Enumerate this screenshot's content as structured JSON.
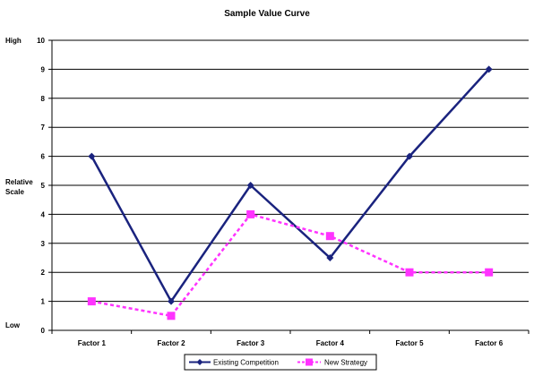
{
  "chart_data": {
    "type": "line",
    "title": "Sample Value Curve",
    "categories": [
      "Factor 1",
      "Factor 2",
      "Factor 3",
      "Factor 4",
      "Factor 5",
      "Factor 6"
    ],
    "ylim": [
      0,
      10
    ],
    "yticks": [
      0,
      1,
      2,
      3,
      4,
      5,
      6,
      7,
      8,
      9,
      10
    ],
    "grid": true,
    "side_labels": {
      "high": "High",
      "middle_line1": "Relative",
      "middle_line2": "Scale",
      "low": "Low"
    },
    "legend_position": "bottom",
    "series": [
      {
        "name": "Existing Competition",
        "values": [
          6,
          1,
          5,
          2.5,
          6,
          9
        ],
        "color": "#1a237e",
        "marker": "diamond",
        "line_style": "solid"
      },
      {
        "name": "New Strategy",
        "values": [
          1,
          0.5,
          4,
          3.25,
          2,
          2
        ],
        "color": "#ff33ff",
        "marker": "square",
        "line_style": "dashed"
      }
    ]
  }
}
